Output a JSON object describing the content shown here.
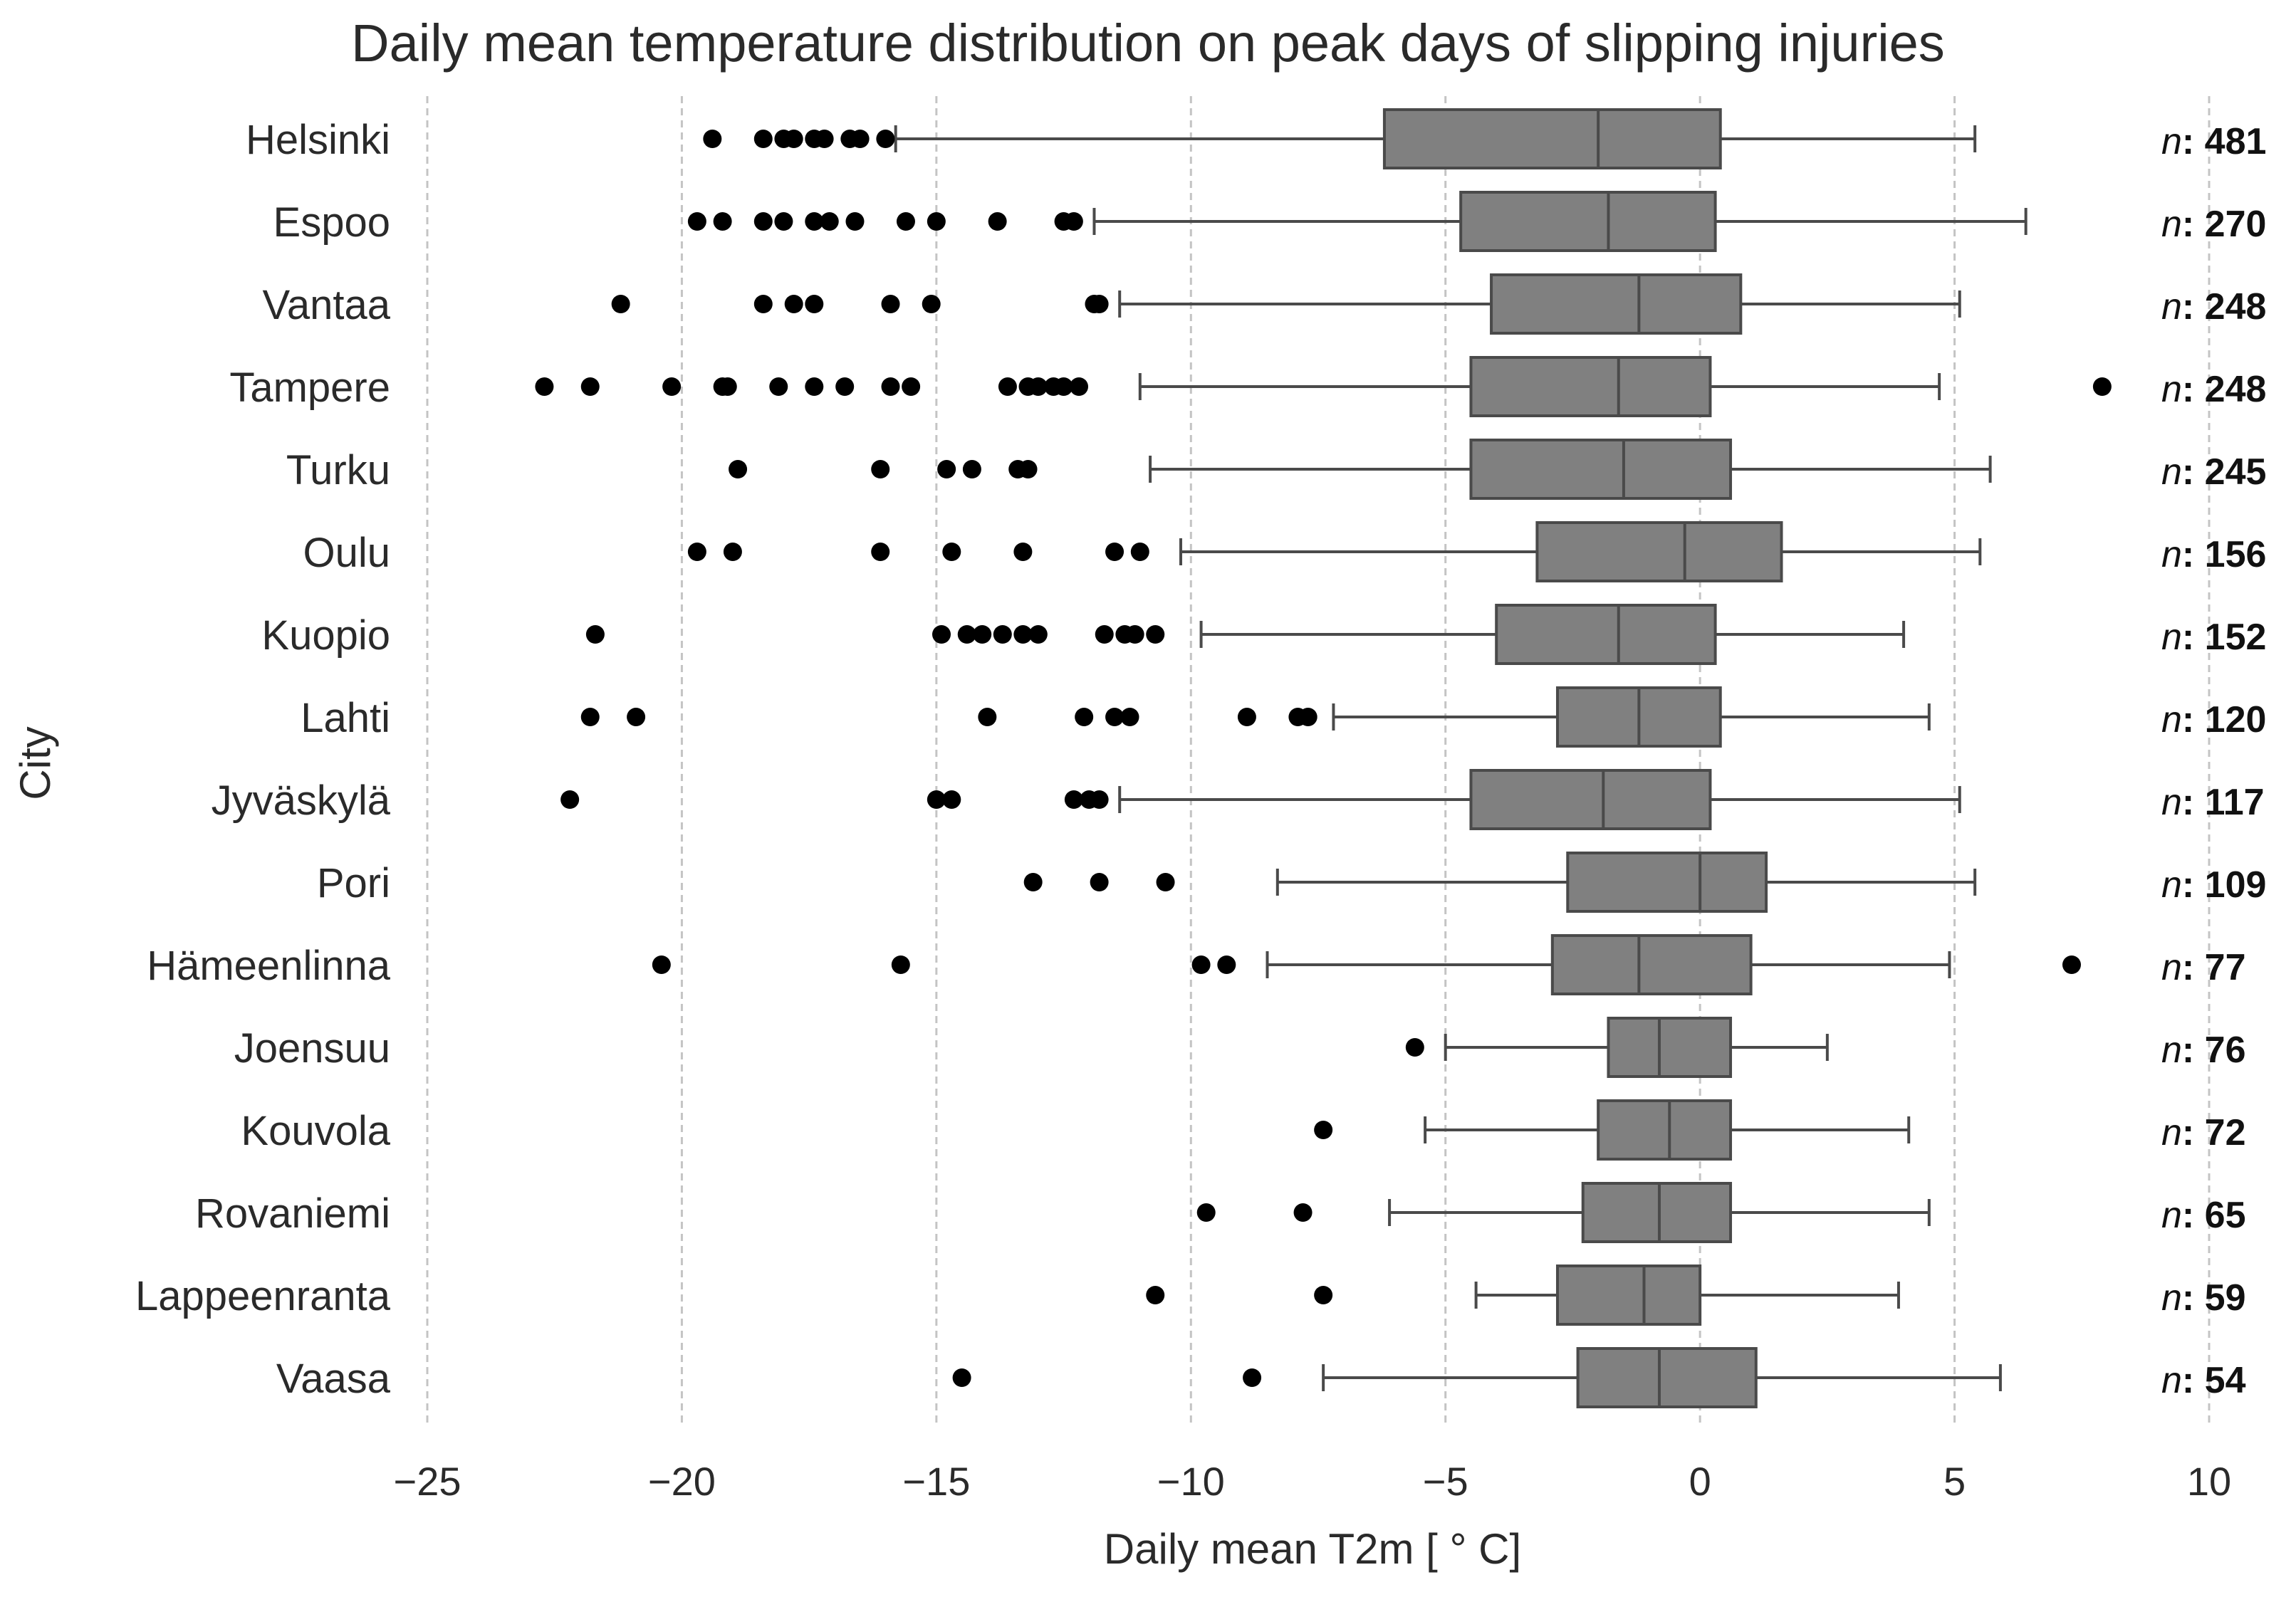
{
  "chart_data": {
    "type": "boxplot",
    "orientation": "horizontal",
    "title": "Daily mean temperature distribution on peak days of slipping injuries",
    "xlabel": "Daily mean T2m [ ° C]",
    "ylabel": "City",
    "xlim": [
      -25,
      10
    ],
    "xticks": [
      -25,
      -20,
      -15,
      -10,
      -5,
      0,
      5,
      10
    ],
    "xtick_labels": [
      "−25",
      "−20",
      "−15",
      "−10",
      "−5",
      "0",
      "5",
      "10"
    ],
    "grid": "vertical dashed",
    "box_color": "#808080",
    "outlier_color": "#000000",
    "n_prefix": "n",
    "cities": [
      {
        "name": "Helsinki",
        "n": "481",
        "whislo": -15.8,
        "q1": -6.2,
        "med": -2.0,
        "q3": 0.4,
        "whishi": 5.4,
        "fliers": [
          -19.4,
          -18.4,
          -18.0,
          -17.8,
          -17.4,
          -17.2,
          -16.7,
          -16.5,
          -16.0
        ]
      },
      {
        "name": "Espoo",
        "n": "270",
        "whislo": -11.9,
        "q1": -4.7,
        "med": -1.8,
        "q3": 0.3,
        "whishi": 6.4,
        "fliers": [
          -19.7,
          -19.2,
          -18.4,
          -18.0,
          -17.4,
          -17.1,
          -16.6,
          -15.6,
          -15.0,
          -13.8,
          -12.5,
          -12.3
        ]
      },
      {
        "name": "Vantaa",
        "n": "248",
        "whislo": -11.4,
        "q1": -4.1,
        "med": -1.2,
        "q3": 0.8,
        "whishi": 5.1,
        "fliers": [
          -21.2,
          -18.4,
          -17.8,
          -17.4,
          -15.9,
          -15.1,
          -11.9,
          -11.8
        ]
      },
      {
        "name": "Tampere",
        "n": "248",
        "whislo": -11.0,
        "q1": -4.5,
        "med": -1.6,
        "q3": 0.2,
        "whishi": 4.7,
        "fliers": [
          -22.7,
          -21.8,
          -20.2,
          -19.2,
          -19.1,
          -18.1,
          -17.4,
          -16.8,
          -15.9,
          -15.5,
          -13.6,
          -13.2,
          -13.0,
          -12.7,
          -12.5,
          -12.2,
          7.9
        ]
      },
      {
        "name": "Turku",
        "n": "245",
        "whislo": -10.8,
        "q1": -4.5,
        "med": -1.5,
        "q3": 0.6,
        "whishi": 5.7,
        "fliers": [
          -18.9,
          -16.1,
          -14.8,
          -14.3,
          -13.4,
          -13.2
        ]
      },
      {
        "name": "Oulu",
        "n": "156",
        "whislo": -10.2,
        "q1": -3.2,
        "med": -0.3,
        "q3": 1.6,
        "whishi": 5.5,
        "fliers": [
          -19.7,
          -19.0,
          -16.1,
          -14.7,
          -13.3,
          -11.5,
          -11.0
        ]
      },
      {
        "name": "Kuopio",
        "n": "152",
        "whislo": -9.8,
        "q1": -4.0,
        "med": -1.6,
        "q3": 0.3,
        "whishi": 4.0,
        "fliers": [
          -21.7,
          -14.9,
          -14.4,
          -14.1,
          -13.7,
          -13.3,
          -13.0,
          -11.7,
          -11.3,
          -11.1,
          -10.7
        ]
      },
      {
        "name": "Lahti",
        "n": "120",
        "whislo": -7.2,
        "q1": -2.8,
        "med": -1.2,
        "q3": 0.4,
        "whishi": 4.5,
        "fliers": [
          -21.8,
          -20.9,
          -14.0,
          -12.1,
          -11.5,
          -11.2,
          -8.9,
          -7.9,
          -7.7
        ]
      },
      {
        "name": "Jyväskylä",
        "n": "117",
        "whislo": -11.4,
        "q1": -4.5,
        "med": -1.9,
        "q3": 0.2,
        "whishi": 5.1,
        "fliers": [
          -22.2,
          -15.0,
          -14.7,
          -12.3,
          -12.0,
          -11.8
        ]
      },
      {
        "name": "Pori",
        "n": "109",
        "whislo": -8.3,
        "q1": -2.6,
        "med": 0.0,
        "q3": 1.3,
        "whishi": 5.4,
        "fliers": [
          -13.1,
          -11.8,
          -10.5
        ]
      },
      {
        "name": "Hämeenlinna",
        "n": "77",
        "whislo": -8.5,
        "q1": -2.9,
        "med": -1.2,
        "q3": 1.0,
        "whishi": 4.9,
        "fliers": [
          -20.4,
          -15.7,
          -9.8,
          -9.3,
          7.3
        ]
      },
      {
        "name": "Joensuu",
        "n": "76",
        "whislo": -5.0,
        "q1": -1.8,
        "med": -0.8,
        "q3": 0.6,
        "whishi": 2.5,
        "fliers": [
          -5.6
        ]
      },
      {
        "name": "Kouvola",
        "n": "72",
        "whislo": -5.4,
        "q1": -2.0,
        "med": -0.6,
        "q3": 0.6,
        "whishi": 4.1,
        "fliers": [
          -7.4
        ]
      },
      {
        "name": "Rovaniemi",
        "n": "65",
        "whislo": -6.1,
        "q1": -2.3,
        "med": -0.8,
        "q3": 0.6,
        "whishi": 4.5,
        "fliers": [
          -9.7,
          -7.8
        ]
      },
      {
        "name": "Lappeenranta",
        "n": "59",
        "whislo": -4.4,
        "q1": -2.8,
        "med": -1.1,
        "q3": 0.0,
        "whishi": 3.9,
        "fliers": [
          -10.7,
          -7.4
        ]
      },
      {
        "name": "Vaasa",
        "n": "54",
        "whislo": -7.4,
        "q1": -2.4,
        "med": -0.8,
        "q3": 1.1,
        "whishi": 5.9,
        "fliers": [
          -14.5,
          -8.8
        ]
      }
    ]
  }
}
